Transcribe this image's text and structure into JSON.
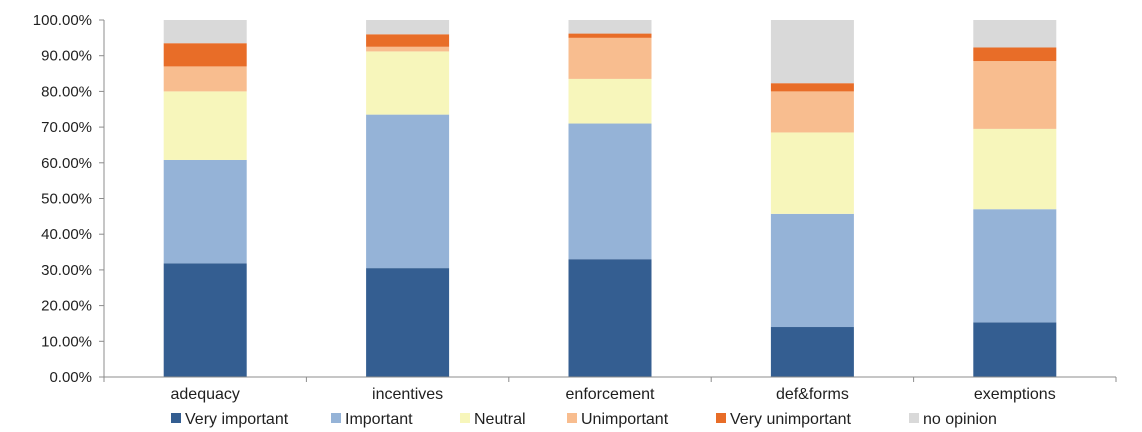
{
  "chart_data": {
    "type": "bar",
    "stacked": true,
    "categories": [
      "adequacy",
      "incentives",
      "enforcement",
      "def&forms",
      "exemptions"
    ],
    "series": [
      {
        "name": "Very important",
        "color": "#345e91",
        "values": [
          31.8,
          30.5,
          33.0,
          14.0,
          15.3
        ]
      },
      {
        "name": "Important",
        "color": "#95b3d7",
        "values": [
          29.0,
          43.0,
          38.0,
          31.7,
          31.7
        ]
      },
      {
        "name": "Neutral",
        "color": "#f7f6bb",
        "values": [
          19.2,
          17.7,
          12.5,
          22.8,
          22.5
        ]
      },
      {
        "name": "Unimportant",
        "color": "#f8bd8f",
        "values": [
          7.0,
          1.3,
          11.5,
          11.5,
          19.0
        ]
      },
      {
        "name": "Very unimportant",
        "color": "#e86d28",
        "values": [
          6.5,
          3.5,
          1.2,
          2.3,
          3.8
        ]
      },
      {
        "name": "no opinion",
        "color": "#d9d9d9",
        "values": [
          6.5,
          4.0,
          3.8,
          17.7,
          7.7
        ]
      }
    ],
    "yticks": [
      "0.00%",
      "10.00%",
      "20.00%",
      "30.00%",
      "40.00%",
      "50.00%",
      "60.00%",
      "70.00%",
      "80.00%",
      "90.00%",
      "100.00%"
    ],
    "ylim": [
      0,
      100
    ],
    "grid": false,
    "legend_position": "bottom"
  }
}
